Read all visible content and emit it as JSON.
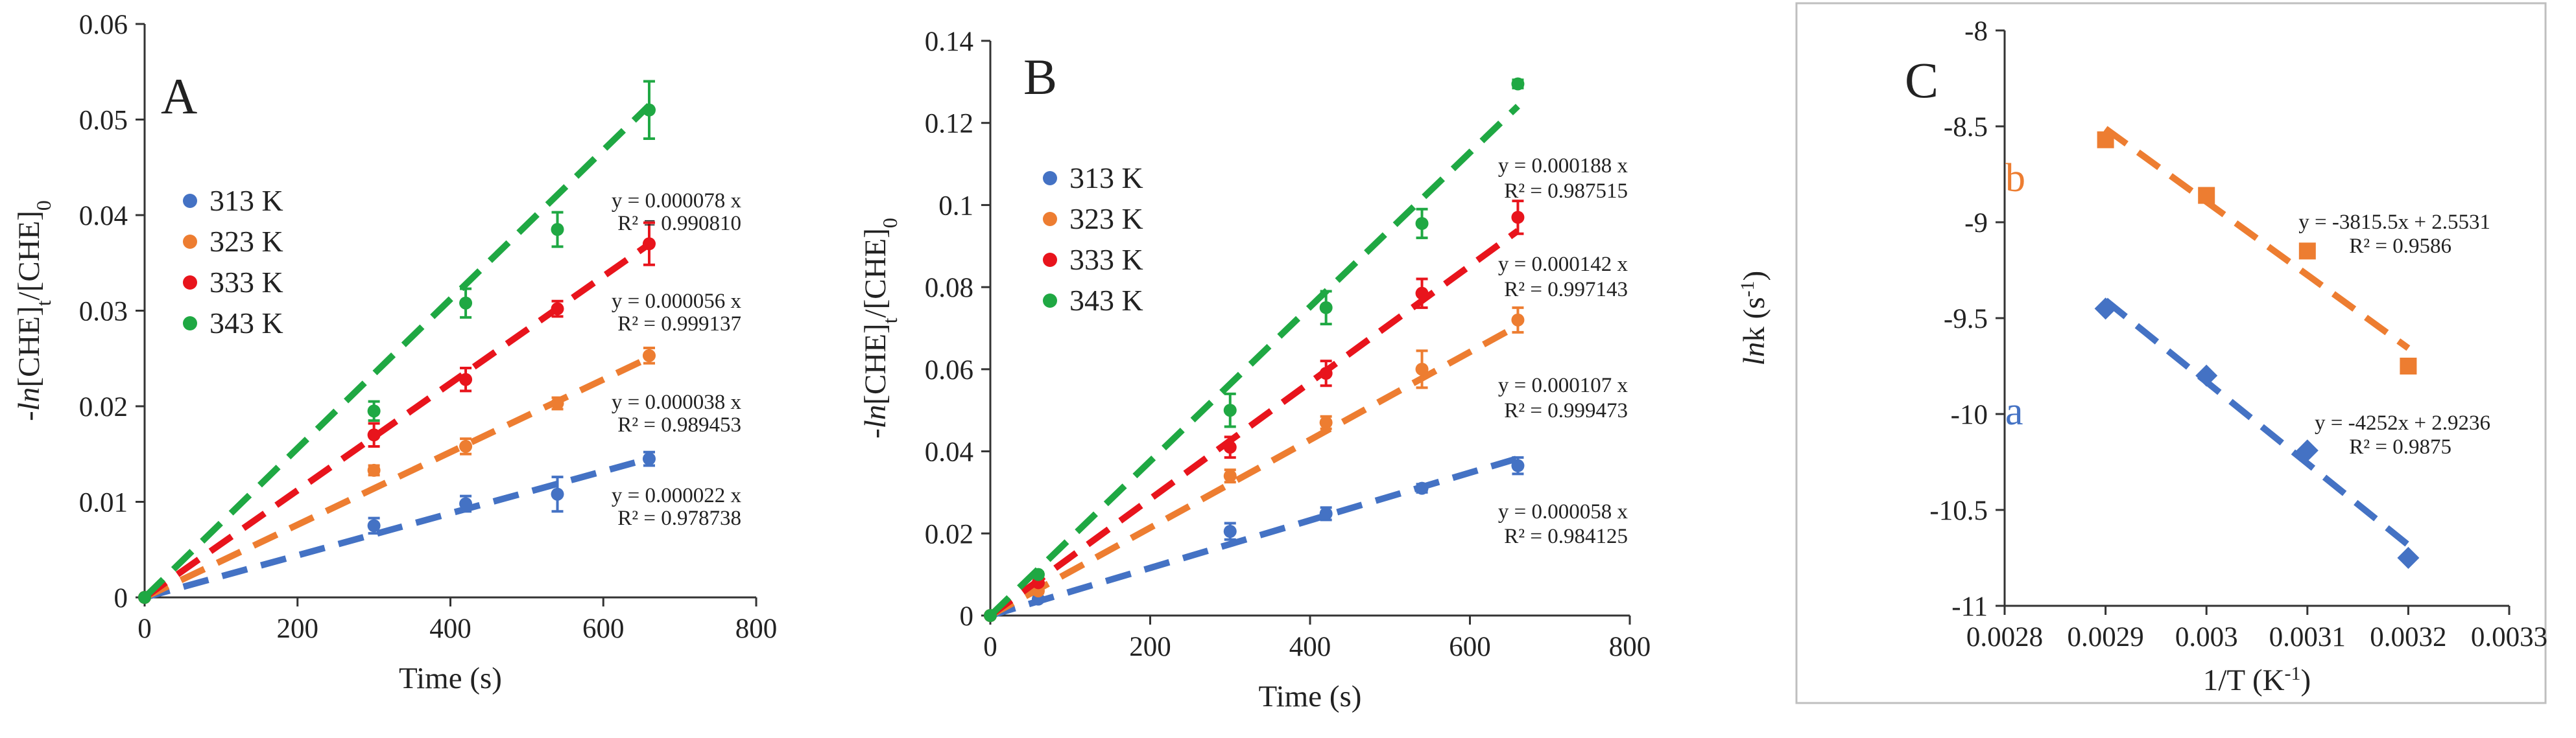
{
  "colors": {
    "313 K": "#4472C4",
    "323 K": "#ED7D31",
    "333 K": "#E8141C",
    "343 K": "#1FA843",
    "a": "#4472C4",
    "b": "#ED7D31",
    "axis": "#333333"
  },
  "chart_data": [
    {
      "type": "scatter",
      "panel_label": "A",
      "xlabel": "Time (s)",
      "ylabel": "-ln[CHE]t/[CHE]0",
      "ylabel_parts": [
        "-",
        "ln",
        "[CHE]",
        "t",
        "/[CHE]",
        "0"
      ],
      "xlim": [
        0,
        800
      ],
      "ylim": [
        0,
        0.06
      ],
      "xticks": [
        0,
        200,
        400,
        600,
        800
      ],
      "yticks": [
        0,
        0.01,
        0.02,
        0.03,
        0.04,
        0.05,
        0.06
      ],
      "xtick_labels": [
        "0",
        "200",
        "400",
        "600",
        "800"
      ],
      "ytick_labels": [
        "0",
        "0.01",
        "0.02",
        "0.03",
        "0.04",
        "0.05",
        "0.06"
      ],
      "legend_position": "upper-left",
      "series": [
        {
          "name": "313 K",
          "x": [
            0,
            300,
            420,
            540,
            660
          ],
          "y": [
            0,
            0.0075,
            0.0098,
            0.0108,
            0.0145
          ],
          "err": [
            0,
            0.0008,
            0.0008,
            0.0018,
            0.0007
          ],
          "slope": 2.2e-05,
          "fit_x_end": 660,
          "equation": "y = 0.000022 x",
          "r2": "R² = 0.978738"
        },
        {
          "name": "323 K",
          "x": [
            0,
            300,
            420,
            540,
            660
          ],
          "y": [
            0,
            0.0133,
            0.0158,
            0.0203,
            0.0253
          ],
          "err": [
            0,
            0.0005,
            0.0008,
            0.0006,
            0.0008
          ],
          "slope": 3.8e-05,
          "fit_x_end": 660,
          "equation": "y = 0.000038 x",
          "r2": "R² = 0.989453"
        },
        {
          "name": "333 K",
          "x": [
            0,
            300,
            420,
            540,
            660
          ],
          "y": [
            0,
            0.017,
            0.0228,
            0.0302,
            0.037
          ],
          "err": [
            0,
            0.0012,
            0.0012,
            0.0008,
            0.0022
          ],
          "slope": 5.6e-05,
          "fit_x_end": 660,
          "equation": "y = 0.000056 x",
          "r2": "R² = 0.999137"
        },
        {
          "name": "343 K",
          "x": [
            0,
            300,
            420,
            540,
            660
          ],
          "y": [
            0,
            0.0195,
            0.0308,
            0.0385,
            0.051
          ],
          "err": [
            0,
            0.001,
            0.0015,
            0.0018,
            0.003
          ],
          "slope": 7.8e-05,
          "fit_x_end": 660,
          "equation": "y = 0.000078 x",
          "r2": "R² = 0.990810"
        }
      ]
    },
    {
      "type": "scatter",
      "panel_label": "B",
      "xlabel": "Time (s)",
      "ylabel": "-ln[CHE]t/[CHE]0",
      "ylabel_parts": [
        "-",
        "ln",
        "[CHE]",
        "t",
        "/[CHE]",
        "0"
      ],
      "xlim": [
        0,
        800
      ],
      "ylim": [
        0,
        0.14
      ],
      "xticks": [
        0,
        200,
        400,
        600,
        800
      ],
      "yticks": [
        0,
        0.02,
        0.04,
        0.06,
        0.08,
        0.1,
        0.12,
        0.14
      ],
      "xtick_labels": [
        "0",
        "200",
        "400",
        "600",
        "800"
      ],
      "ytick_labels": [
        "0",
        "0.02",
        "0.04",
        "0.06",
        "0.08",
        "0.1",
        "0.12",
        "0.14"
      ],
      "legend_position": "upper-left",
      "series": [
        {
          "name": "313 K",
          "x": [
            0,
            60,
            300,
            420,
            540,
            660
          ],
          "y": [
            0,
            0.004,
            0.0205,
            0.0248,
            0.031,
            0.0365
          ],
          "err": [
            0,
            0.0005,
            0.002,
            0.0015,
            0.001,
            0.002
          ],
          "slope": 5.8e-05,
          "fit_x_end": 660,
          "equation": "y = 0.000058 x",
          "r2": "R² = 0.984125"
        },
        {
          "name": "323 K",
          "x": [
            0,
            60,
            300,
            420,
            540,
            660
          ],
          "y": [
            0,
            0.006,
            0.034,
            0.047,
            0.06,
            0.072
          ],
          "err": [
            0,
            0.0005,
            0.0015,
            0.0015,
            0.0045,
            0.003
          ],
          "slope": 0.000107,
          "fit_x_end": 660,
          "equation": "y = 0.000107 x",
          "r2": "R² = 0.999473"
        },
        {
          "name": "333 K",
          "x": [
            0,
            60,
            300,
            420,
            540,
            660
          ],
          "y": [
            0,
            0.008,
            0.041,
            0.059,
            0.0785,
            0.097
          ],
          "err": [
            0,
            0.0005,
            0.0025,
            0.003,
            0.0035,
            0.004
          ],
          "slope": 0.000142,
          "fit_x_end": 660,
          "equation": "y = 0.000142 x",
          "r2": "R² = 0.997143"
        },
        {
          "name": "343 K",
          "x": [
            0,
            60,
            300,
            420,
            540,
            660
          ],
          "y": [
            0,
            0.01,
            0.05,
            0.075,
            0.0955,
            0.1295
          ],
          "err": [
            0,
            0.0005,
            0.004,
            0.004,
            0.0035,
            0.001
          ],
          "slope": 0.000188,
          "fit_x_end": 660,
          "equation": "y = 0.000188 x",
          "r2": "R² = 0.987515"
        }
      ]
    },
    {
      "type": "scatter",
      "panel_label": "C",
      "xlabel": "1/T (K-1)",
      "xlabel_parts": [
        "1/T (K",
        "-1",
        ")"
      ],
      "ylabel": "lnk (s-1)",
      "ylabel_parts": [
        "ln",
        "k (s",
        "-1",
        ")"
      ],
      "xlim": [
        0.0028,
        0.0033
      ],
      "ylim": [
        -11,
        -8
      ],
      "xticks": [
        0.0028,
        0.0029,
        0.003,
        0.0031,
        0.0032,
        0.0033
      ],
      "yticks": [
        -11,
        -10.5,
        -10,
        -9.5,
        -9,
        -8.5,
        -8
      ],
      "xtick_labels": [
        "0.0028",
        "0.0029",
        "0.003",
        "0.0031",
        "0.0032",
        "0.0033"
      ],
      "ytick_labels": [
        "-11",
        "-10.5",
        "-10",
        "-9.5",
        "-9",
        "-8.5",
        "-8"
      ],
      "series": [
        {
          "name": "b",
          "marker": "square",
          "x": [
            0.0029,
            0.003,
            0.0031,
            0.0032
          ],
          "y": [
            -8.57,
            -8.86,
            -9.15,
            -9.75
          ],
          "fit": {
            "slope": -3815.5,
            "intercept": 2.5531,
            "x_start": 0.0029,
            "x_end": 0.0032
          },
          "equation": "y = -3815.5x + 2.5531",
          "r2": "R² = 0.9586"
        },
        {
          "name": "a",
          "marker": "diamond",
          "x": [
            0.0029,
            0.003,
            0.0031,
            0.0032
          ],
          "y": [
            -9.45,
            -9.8,
            -10.19,
            -10.75
          ],
          "fit": {
            "slope": -4252,
            "intercept": 2.9236,
            "x_start": 0.0029,
            "x_end": 0.0032
          },
          "equation": "y = -4252x + 2.9236",
          "r2": "R² = 0.9875"
        }
      ]
    }
  ]
}
